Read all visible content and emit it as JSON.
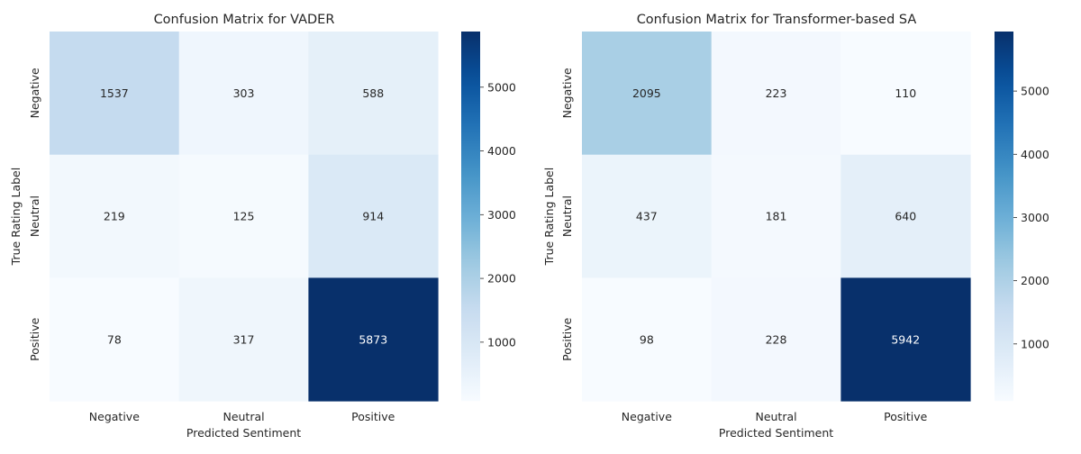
{
  "chart_data": [
    {
      "type": "heatmap",
      "title": "Confusion Matrix for VADER",
      "xlabel": "Predicted Sentiment",
      "ylabel": "True Rating Label",
      "x_categories": [
        "Negative",
        "Neutral",
        "Positive"
      ],
      "y_categories": [
        "Negative",
        "Neutral",
        "Positive"
      ],
      "values": [
        [
          1537,
          303,
          588
        ],
        [
          219,
          125,
          914
        ],
        [
          78,
          317,
          5873
        ]
      ],
      "colorbar": {
        "colormap": "Blues",
        "vmin": 78,
        "vmax": 5873,
        "ticks": [
          1000,
          2000,
          3000,
          4000,
          5000
        ]
      }
    },
    {
      "type": "heatmap",
      "title": "Confusion Matrix for Transformer-based SA",
      "xlabel": "Predicted Sentiment",
      "ylabel": "True Rating Label",
      "x_categories": [
        "Negative",
        "Neutral",
        "Positive"
      ],
      "y_categories": [
        "Negative",
        "Neutral",
        "Positive"
      ],
      "values": [
        [
          2095,
          223,
          110
        ],
        [
          437,
          181,
          640
        ],
        [
          98,
          228,
          5942
        ]
      ],
      "colorbar": {
        "colormap": "Blues",
        "vmin": 98,
        "vmax": 5942,
        "ticks": [
          1000,
          2000,
          3000,
          4000,
          5000
        ]
      }
    }
  ]
}
